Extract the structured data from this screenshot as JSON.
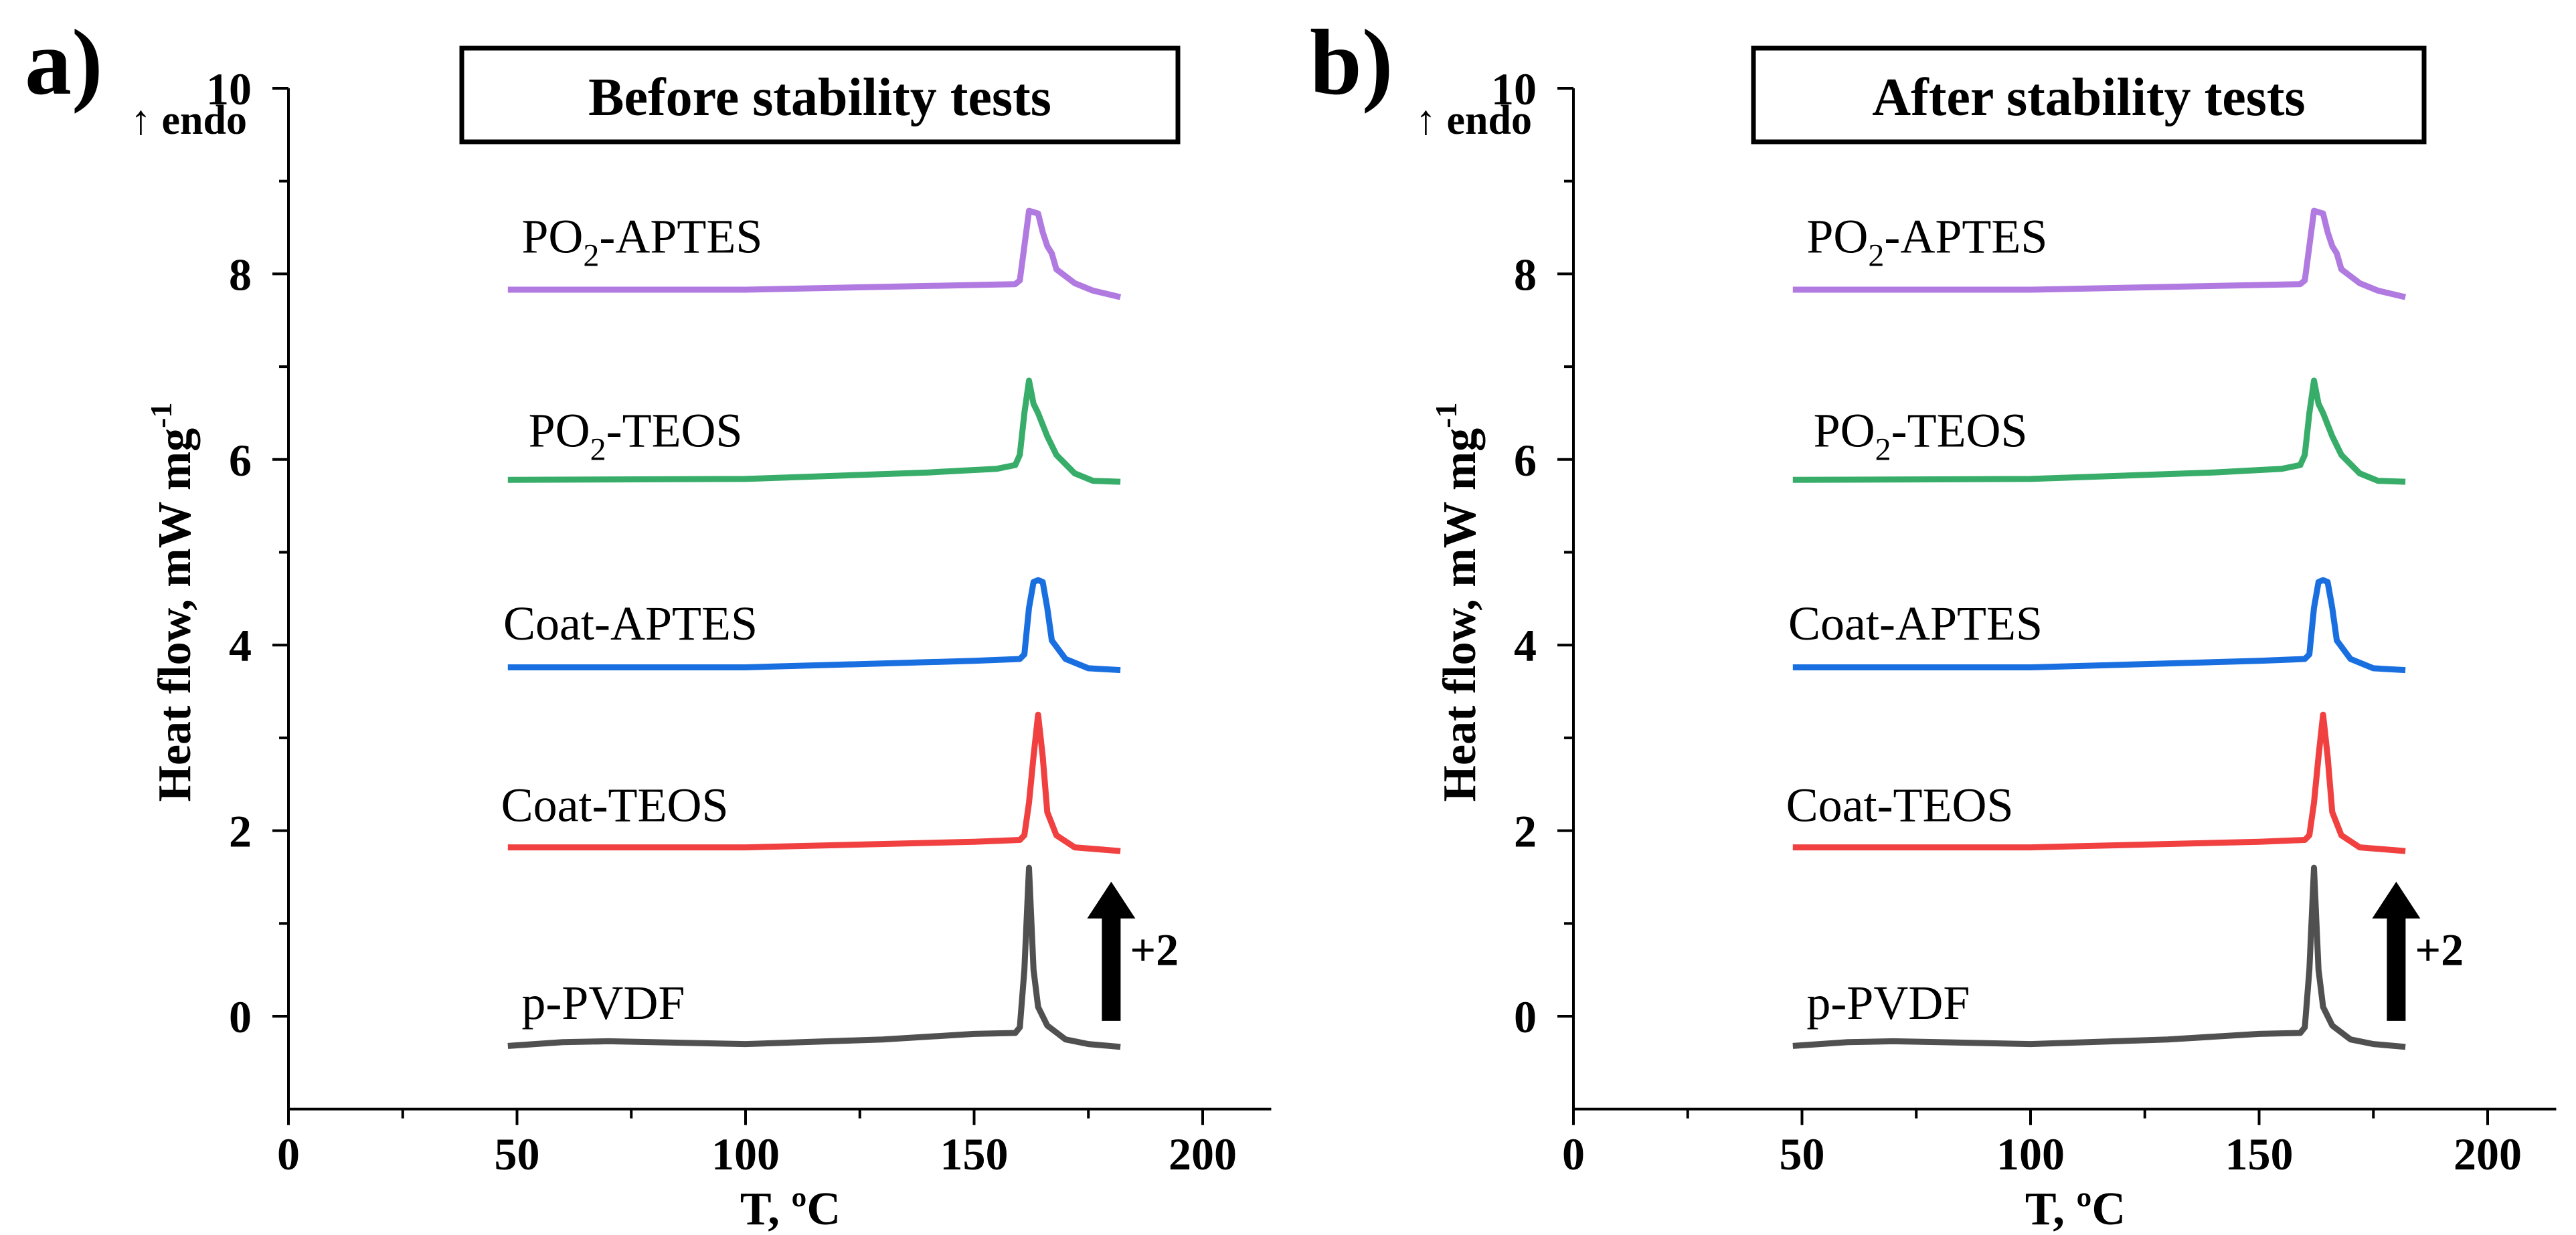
{
  "chart_data": [
    {
      "type": "line",
      "panel_label": "a)",
      "title": "Before stability tests",
      "xlabel": "T, ºC",
      "ylabel": "Heat flow, mW mg",
      "ylabel_sup": "-1",
      "endo_label": "↑ endo",
      "offset_label": "+2",
      "xlim": [
        0,
        215
      ],
      "ylim": [
        -1,
        10
      ],
      "xticks": [
        0,
        50,
        100,
        150,
        200
      ],
      "yticks": [
        0,
        2,
        4,
        6,
        8,
        10
      ],
      "grid": false,
      "series": [
        {
          "name": "p-PVDF",
          "name_main": "p-PVDF",
          "name_sub": "",
          "name_rest": "",
          "color": "#505050",
          "points": [
            [
              48,
              -0.32
            ],
            [
              60,
              -0.28
            ],
            [
              70,
              -0.27
            ],
            [
              100,
              -0.3
            ],
            [
              130,
              -0.25
            ],
            [
              150,
              -0.19
            ],
            [
              159,
              -0.18
            ],
            [
              160,
              -0.12
            ],
            [
              161,
              0.5
            ],
            [
              162,
              1.6
            ],
            [
              163,
              0.5
            ],
            [
              164,
              0.1
            ],
            [
              166,
              -0.1
            ],
            [
              170,
              -0.25
            ],
            [
              175,
              -0.3
            ],
            [
              182,
              -0.33
            ]
          ]
        },
        {
          "name": "Coat-TEOS",
          "name_main": "Coat-TEOS",
          "name_sub": "",
          "name_rest": "",
          "color": "#f04040",
          "points": [
            [
              48,
              1.82
            ],
            [
              100,
              1.82
            ],
            [
              150,
              1.88
            ],
            [
              160,
              1.9
            ],
            [
              161,
              1.95
            ],
            [
              162,
              2.3
            ],
            [
              163,
              2.8
            ],
            [
              164,
              3.25
            ],
            [
              165,
              2.8
            ],
            [
              166,
              2.2
            ],
            [
              168,
              1.95
            ],
            [
              172,
              1.82
            ],
            [
              182,
              1.78
            ]
          ]
        },
        {
          "name": "Coat-APTES",
          "name_main": "Coat-APTES",
          "name_sub": "",
          "name_rest": "",
          "color": "#1a6fe0",
          "points": [
            [
              48,
              3.76
            ],
            [
              100,
              3.76
            ],
            [
              150,
              3.83
            ],
            [
              160,
              3.85
            ],
            [
              161,
              3.9
            ],
            [
              162,
              4.4
            ],
            [
              163,
              4.68
            ],
            [
              164,
              4.7
            ],
            [
              165,
              4.68
            ],
            [
              166,
              4.4
            ],
            [
              167,
              4.05
            ],
            [
              170,
              3.85
            ],
            [
              175,
              3.75
            ],
            [
              182,
              3.73
            ]
          ]
        },
        {
          "name": "PO2-TEOS",
          "name_main": "PO",
          "name_sub": "2",
          "name_rest": "-TEOS",
          "color": "#38ad6a",
          "points": [
            [
              48,
              5.78
            ],
            [
              100,
              5.79
            ],
            [
              140,
              5.86
            ],
            [
              155,
              5.9
            ],
            [
              159,
              5.94
            ],
            [
              160,
              6.05
            ],
            [
              161,
              6.5
            ],
            [
              162,
              6.85
            ],
            [
              163,
              6.6
            ],
            [
              164,
              6.5
            ],
            [
              166,
              6.25
            ],
            [
              168,
              6.05
            ],
            [
              172,
              5.85
            ],
            [
              176,
              5.77
            ],
            [
              182,
              5.76
            ]
          ]
        },
        {
          "name": "PO2-APTES",
          "name_main": "PO",
          "name_sub": "2",
          "name_rest": "-APTES",
          "color": "#b07ae0",
          "points": [
            [
              48,
              7.83
            ],
            [
              100,
              7.83
            ],
            [
              150,
              7.88
            ],
            [
              159,
              7.89
            ],
            [
              160,
              7.93
            ],
            [
              161,
              8.3
            ],
            [
              162,
              8.68
            ],
            [
              164,
              8.65
            ],
            [
              165,
              8.45
            ],
            [
              166,
              8.3
            ],
            [
              167,
              8.22
            ],
            [
              168,
              8.05
            ],
            [
              172,
              7.9
            ],
            [
              176,
              7.82
            ],
            [
              182,
              7.75
            ]
          ]
        }
      ]
    },
    {
      "type": "line",
      "panel_label": "b)",
      "title": "After stability tests",
      "xlabel": "T, ºC",
      "ylabel": "Heat flow, mW mg",
      "ylabel_sup": "-1",
      "endo_label": "↑ endo",
      "offset_label": "+2",
      "xlim": [
        0,
        215
      ],
      "ylim": [
        -1,
        10
      ],
      "xticks": [
        0,
        50,
        100,
        150,
        200
      ],
      "yticks": [
        0,
        2,
        4,
        6,
        8,
        10
      ],
      "grid": false,
      "series": [
        {
          "name": "p-PVDF",
          "name_main": "p-PVDF",
          "name_sub": "",
          "name_rest": "",
          "color": "#505050",
          "points": [
            [
              48,
              -0.32
            ],
            [
              60,
              -0.28
            ],
            [
              70,
              -0.27
            ],
            [
              100,
              -0.3
            ],
            [
              130,
              -0.25
            ],
            [
              150,
              -0.19
            ],
            [
              159,
              -0.18
            ],
            [
              160,
              -0.12
            ],
            [
              161,
              0.5
            ],
            [
              162,
              1.6
            ],
            [
              163,
              0.5
            ],
            [
              164,
              0.1
            ],
            [
              166,
              -0.1
            ],
            [
              170,
              -0.25
            ],
            [
              175,
              -0.3
            ],
            [
              182,
              -0.33
            ]
          ]
        },
        {
          "name": "Coat-TEOS",
          "name_main": "Coat-TEOS",
          "name_sub": "",
          "name_rest": "",
          "color": "#f04040",
          "points": [
            [
              48,
              1.82
            ],
            [
              100,
              1.82
            ],
            [
              150,
              1.88
            ],
            [
              160,
              1.9
            ],
            [
              161,
              1.95
            ],
            [
              162,
              2.3
            ],
            [
              163,
              2.8
            ],
            [
              164,
              3.25
            ],
            [
              165,
              2.8
            ],
            [
              166,
              2.2
            ],
            [
              168,
              1.95
            ],
            [
              172,
              1.82
            ],
            [
              182,
              1.78
            ]
          ]
        },
        {
          "name": "Coat-APTES",
          "name_main": "Coat-APTES",
          "name_sub": "",
          "name_rest": "",
          "color": "#1a6fe0",
          "points": [
            [
              48,
              3.76
            ],
            [
              100,
              3.76
            ],
            [
              150,
              3.83
            ],
            [
              160,
              3.85
            ],
            [
              161,
              3.9
            ],
            [
              162,
              4.4
            ],
            [
              163,
              4.68
            ],
            [
              164,
              4.7
            ],
            [
              165,
              4.68
            ],
            [
              166,
              4.4
            ],
            [
              167,
              4.05
            ],
            [
              170,
              3.85
            ],
            [
              175,
              3.75
            ],
            [
              182,
              3.73
            ]
          ]
        },
        {
          "name": "PO2-TEOS",
          "name_main": "PO",
          "name_sub": "2",
          "name_rest": "-TEOS",
          "color": "#38ad6a",
          "points": [
            [
              48,
              5.78
            ],
            [
              100,
              5.79
            ],
            [
              140,
              5.86
            ],
            [
              155,
              5.9
            ],
            [
              159,
              5.94
            ],
            [
              160,
              6.05
            ],
            [
              161,
              6.5
            ],
            [
              162,
              6.85
            ],
            [
              163,
              6.6
            ],
            [
              164,
              6.5
            ],
            [
              166,
              6.25
            ],
            [
              168,
              6.05
            ],
            [
              172,
              5.85
            ],
            [
              176,
              5.77
            ],
            [
              182,
              5.76
            ]
          ]
        },
        {
          "name": "PO2-APTES",
          "name_main": "PO",
          "name_sub": "2",
          "name_rest": "-APTES",
          "color": "#b07ae0",
          "points": [
            [
              48,
              7.83
            ],
            [
              100,
              7.83
            ],
            [
              150,
              7.88
            ],
            [
              159,
              7.89
            ],
            [
              160,
              7.93
            ],
            [
              161,
              8.3
            ],
            [
              162,
              8.68
            ],
            [
              164,
              8.65
            ],
            [
              165,
              8.45
            ],
            [
              166,
              8.3
            ],
            [
              167,
              8.22
            ],
            [
              168,
              8.05
            ],
            [
              172,
              7.9
            ],
            [
              176,
              7.82
            ],
            [
              182,
              7.75
            ]
          ]
        }
      ]
    }
  ]
}
